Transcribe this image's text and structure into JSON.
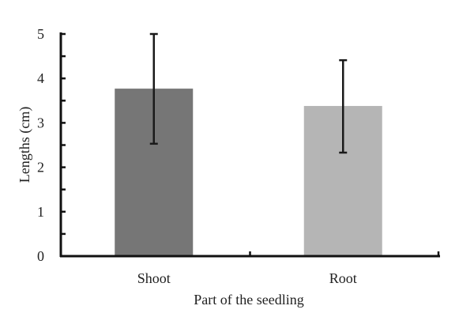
{
  "chart_data": {
    "type": "bar",
    "title": "",
    "xlabel": "Part of the seedling",
    "ylabel": "Lengths (cm)",
    "categories": [
      "Shoot",
      "Root"
    ],
    "values": [
      3.77,
      3.38
    ],
    "error_bars": [
      {
        "category": "Shoot",
        "lower": 2.53,
        "upper": 5.0
      },
      {
        "category": "Root",
        "lower": 2.33,
        "upper": 4.41
      }
    ],
    "colors": [
      "#767676",
      "#b5b5b5"
    ],
    "ylim": [
      0,
      5
    ],
    "yticks": [
      "0",
      "1",
      "2",
      "3",
      "4",
      "5"
    ],
    "yminor_step": 0.5,
    "grid": false,
    "legend": null
  }
}
